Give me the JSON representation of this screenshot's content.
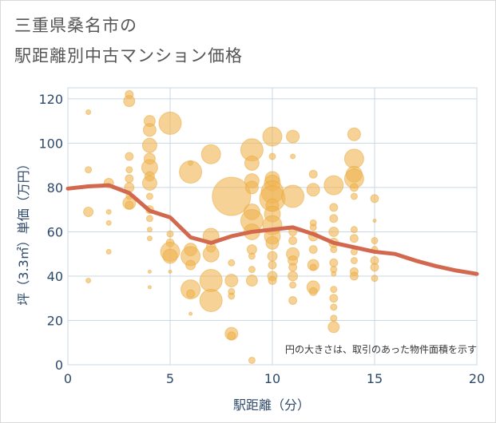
{
  "title_line1": "三重県桑名市の",
  "title_line2": "駅距離別中古マンション価格",
  "chart_data": {
    "type": "scatter",
    "title": "三重県桑名市の駅距離別中古マンション価格",
    "xlabel": "駅距離（分）",
    "ylabel": "坪（3.3㎡）単価（万円）",
    "xlim": [
      0,
      20
    ],
    "ylim": [
      0,
      125
    ],
    "xticks": [
      0,
      5,
      10,
      15,
      20
    ],
    "yticks": [
      0,
      20,
      40,
      60,
      80,
      100,
      120
    ],
    "grid": true,
    "annotation": "円の大きさは、取引のあった物件面積を示す",
    "colors": {
      "bubble": "#f0b450",
      "line": "#d2694f",
      "grid": "#c8d8e6",
      "text": "#2e4a6b"
    },
    "bubbles": [
      {
        "x": 1,
        "y": 114,
        "s": 3
      },
      {
        "x": 1,
        "y": 88,
        "s": 4
      },
      {
        "x": 1,
        "y": 69,
        "s": 6
      },
      {
        "x": 1,
        "y": 38,
        "s": 3
      },
      {
        "x": 2,
        "y": 82,
        "s": 6
      },
      {
        "x": 2,
        "y": 69,
        "s": 3
      },
      {
        "x": 2,
        "y": 64,
        "s": 3
      },
      {
        "x": 2,
        "y": 51,
        "s": 3
      },
      {
        "x": 3,
        "y": 122,
        "s": 5
      },
      {
        "x": 3,
        "y": 119,
        "s": 7
      },
      {
        "x": 3,
        "y": 94,
        "s": 5
      },
      {
        "x": 3,
        "y": 88,
        "s": 4
      },
      {
        "x": 3,
        "y": 84,
        "s": 5
      },
      {
        "x": 3,
        "y": 80,
        "s": 6
      },
      {
        "x": 3,
        "y": 76,
        "s": 4
      },
      {
        "x": 3,
        "y": 73,
        "s": 8
      },
      {
        "x": 3,
        "y": 72,
        "s": 5
      },
      {
        "x": 4,
        "y": 110,
        "s": 7
      },
      {
        "x": 4,
        "y": 106,
        "s": 8
      },
      {
        "x": 4,
        "y": 99,
        "s": 9
      },
      {
        "x": 4,
        "y": 93,
        "s": 7
      },
      {
        "x": 4,
        "y": 89,
        "s": 10
      },
      {
        "x": 4,
        "y": 85,
        "s": 6
      },
      {
        "x": 4,
        "y": 82,
        "s": 9
      },
      {
        "x": 4,
        "y": 76,
        "s": 4
      },
      {
        "x": 4,
        "y": 70,
        "s": 5
      },
      {
        "x": 4,
        "y": 66,
        "s": 4
      },
      {
        "x": 4,
        "y": 61,
        "s": 3
      },
      {
        "x": 4,
        "y": 57,
        "s": 3
      },
      {
        "x": 4,
        "y": 42,
        "s": 2
      },
      {
        "x": 4,
        "y": 35,
        "s": 2
      },
      {
        "x": 5,
        "y": 109,
        "s": 14
      },
      {
        "x": 5,
        "y": 59,
        "s": 4
      },
      {
        "x": 5,
        "y": 55,
        "s": 5
      },
      {
        "x": 5,
        "y": 51,
        "s": 12
      },
      {
        "x": 5,
        "y": 49,
        "s": 9
      },
      {
        "x": 5,
        "y": 42,
        "s": 2
      },
      {
        "x": 6,
        "y": 91,
        "s": 3
      },
      {
        "x": 6,
        "y": 87,
        "s": 14
      },
      {
        "x": 6,
        "y": 52,
        "s": 8
      },
      {
        "x": 6,
        "y": 49,
        "s": 12
      },
      {
        "x": 6,
        "y": 45,
        "s": 6
      },
      {
        "x": 6,
        "y": 34,
        "s": 12
      },
      {
        "x": 6,
        "y": 32,
        "s": 5
      },
      {
        "x": 6,
        "y": 23,
        "s": 2
      },
      {
        "x": 7,
        "y": 95,
        "s": 12
      },
      {
        "x": 7,
        "y": 58,
        "s": 10
      },
      {
        "x": 7,
        "y": 53,
        "s": 6
      },
      {
        "x": 7,
        "y": 50,
        "s": 10
      },
      {
        "x": 7,
        "y": 38,
        "s": 14
      },
      {
        "x": 7,
        "y": 29,
        "s": 14
      },
      {
        "x": 8,
        "y": 76,
        "s": 24
      },
      {
        "x": 8,
        "y": 46,
        "s": 4
      },
      {
        "x": 8,
        "y": 38,
        "s": 8
      },
      {
        "x": 8,
        "y": 33,
        "s": 4
      },
      {
        "x": 8,
        "y": 31,
        "s": 4
      },
      {
        "x": 8,
        "y": 14,
        "s": 8
      },
      {
        "x": 8,
        "y": 13,
        "s": 5
      },
      {
        "x": 9,
        "y": 97,
        "s": 14
      },
      {
        "x": 9,
        "y": 91,
        "s": 9
      },
      {
        "x": 9,
        "y": 83,
        "s": 9
      },
      {
        "x": 9,
        "y": 80,
        "s": 8
      },
      {
        "x": 9,
        "y": 69,
        "s": 10
      },
      {
        "x": 9,
        "y": 65,
        "s": 14
      },
      {
        "x": 9,
        "y": 60,
        "s": 10
      },
      {
        "x": 9,
        "y": 52,
        "s": 6
      },
      {
        "x": 9,
        "y": 49,
        "s": 4
      },
      {
        "x": 9,
        "y": 43,
        "s": 4
      },
      {
        "x": 9,
        "y": 38,
        "s": 7
      },
      {
        "x": 9,
        "y": 2,
        "s": 4
      },
      {
        "x": 10,
        "y": 103,
        "s": 12
      },
      {
        "x": 10,
        "y": 94,
        "s": 4
      },
      {
        "x": 10,
        "y": 84,
        "s": 9
      },
      {
        "x": 10,
        "y": 82,
        "s": 10
      },
      {
        "x": 10,
        "y": 78,
        "s": 14
      },
      {
        "x": 10,
        "y": 75,
        "s": 16
      },
      {
        "x": 10,
        "y": 72,
        "s": 8
      },
      {
        "x": 10,
        "y": 68,
        "s": 10
      },
      {
        "x": 10,
        "y": 63,
        "s": 12
      },
      {
        "x": 10,
        "y": 58,
        "s": 10
      },
      {
        "x": 10,
        "y": 55,
        "s": 8
      },
      {
        "x": 10,
        "y": 49,
        "s": 6
      },
      {
        "x": 10,
        "y": 45,
        "s": 5
      },
      {
        "x": 10,
        "y": 40,
        "s": 6
      },
      {
        "x": 10,
        "y": 38,
        "s": 5
      },
      {
        "x": 11,
        "y": 103,
        "s": 8
      },
      {
        "x": 11,
        "y": 94,
        "s": 3
      },
      {
        "x": 11,
        "y": 76,
        "s": 14
      },
      {
        "x": 11,
        "y": 60,
        "s": 5
      },
      {
        "x": 11,
        "y": 56,
        "s": 5
      },
      {
        "x": 11,
        "y": 50,
        "s": 8
      },
      {
        "x": 11,
        "y": 47,
        "s": 6
      },
      {
        "x": 11,
        "y": 44,
        "s": 5
      },
      {
        "x": 11,
        "y": 40,
        "s": 6
      },
      {
        "x": 11,
        "y": 36,
        "s": 4
      },
      {
        "x": 11,
        "y": 29,
        "s": 5
      },
      {
        "x": 12,
        "y": 86,
        "s": 5
      },
      {
        "x": 12,
        "y": 79,
        "s": 8
      },
      {
        "x": 12,
        "y": 64,
        "s": 4
      },
      {
        "x": 12,
        "y": 62,
        "s": 4
      },
      {
        "x": 12,
        "y": 58,
        "s": 6
      },
      {
        "x": 12,
        "y": 52,
        "s": 5
      },
      {
        "x": 12,
        "y": 45,
        "s": 7
      },
      {
        "x": 12,
        "y": 44,
        "s": 4
      },
      {
        "x": 12,
        "y": 35,
        "s": 8
      },
      {
        "x": 12,
        "y": 33,
        "s": 5
      },
      {
        "x": 13,
        "y": 81,
        "s": 12
      },
      {
        "x": 13,
        "y": 71,
        "s": 5
      },
      {
        "x": 13,
        "y": 66,
        "s": 5
      },
      {
        "x": 13,
        "y": 60,
        "s": 6
      },
      {
        "x": 13,
        "y": 55,
        "s": 6
      },
      {
        "x": 13,
        "y": 52,
        "s": 4
      },
      {
        "x": 13,
        "y": 46,
        "s": 5
      },
      {
        "x": 13,
        "y": 43,
        "s": 4
      },
      {
        "x": 13,
        "y": 41,
        "s": 3
      },
      {
        "x": 13,
        "y": 34,
        "s": 4
      },
      {
        "x": 13,
        "y": 30,
        "s": 5
      },
      {
        "x": 13,
        "y": 26,
        "s": 4
      },
      {
        "x": 13,
        "y": 21,
        "s": 4
      },
      {
        "x": 13,
        "y": 17,
        "s": 7
      },
      {
        "x": 14,
        "y": 104,
        "s": 8
      },
      {
        "x": 14,
        "y": 93,
        "s": 12
      },
      {
        "x": 14,
        "y": 86,
        "s": 10
      },
      {
        "x": 14,
        "y": 84,
        "s": 12
      },
      {
        "x": 14,
        "y": 80,
        "s": 5
      },
      {
        "x": 14,
        "y": 76,
        "s": 4
      },
      {
        "x": 14,
        "y": 61,
        "s": 4
      },
      {
        "x": 14,
        "y": 57,
        "s": 5
      },
      {
        "x": 14,
        "y": 51,
        "s": 4
      },
      {
        "x": 14,
        "y": 47,
        "s": 4
      },
      {
        "x": 14,
        "y": 42,
        "s": 5
      },
      {
        "x": 14,
        "y": 40,
        "s": 5
      },
      {
        "x": 15,
        "y": 75,
        "s": 5
      },
      {
        "x": 15,
        "y": 65,
        "s": 2
      },
      {
        "x": 15,
        "y": 56,
        "s": 4
      },
      {
        "x": 15,
        "y": 52,
        "s": 4
      },
      {
        "x": 15,
        "y": 47,
        "s": 5
      },
      {
        "x": 15,
        "y": 44,
        "s": 5
      },
      {
        "x": 15,
        "y": 39,
        "s": 4
      }
    ],
    "series": [
      {
        "x": [
          0,
          1,
          2,
          3,
          4,
          5,
          6,
          7,
          8,
          9,
          10,
          11,
          12,
          13,
          14,
          15,
          16,
          17,
          18,
          19,
          20
        ],
        "values": [
          79.5,
          80.5,
          81,
          77.5,
          69.5,
          66.5,
          57.5,
          55,
          58,
          60,
          61,
          62,
          59,
          55,
          53,
          51,
          50,
          47,
          44.5,
          42.5,
          41
        ]
      }
    ]
  }
}
